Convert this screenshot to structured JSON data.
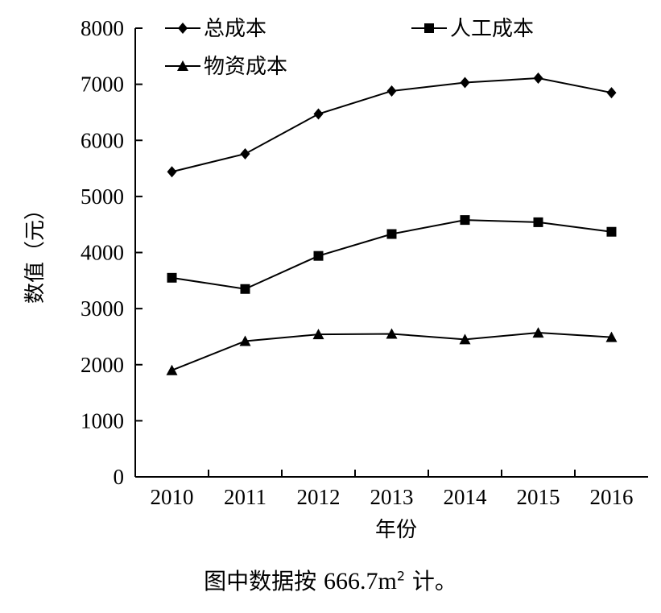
{
  "chart_data": {
    "type": "line",
    "xlabel": "年份",
    "ylabel": "数值（元）",
    "categories": [
      "2010",
      "2011",
      "2012",
      "2013",
      "2014",
      "2015",
      "2016"
    ],
    "ylim": [
      0,
      8000
    ],
    "yticks": [
      0,
      1000,
      2000,
      3000,
      4000,
      5000,
      6000,
      7000,
      8000
    ],
    "grid": false,
    "legend_position": "top",
    "series": [
      {
        "name": "总成本",
        "marker": "diamond",
        "values": [
          5440,
          5760,
          6470,
          6880,
          7030,
          7110,
          6850
        ]
      },
      {
        "name": "人工成本",
        "marker": "square",
        "values": [
          3550,
          3350,
          3940,
          4330,
          4580,
          4540,
          4370
        ]
      },
      {
        "name": "物资成本",
        "marker": "triangle",
        "values": [
          1900,
          2420,
          2540,
          2550,
          2450,
          2570,
          2490
        ]
      }
    ],
    "colors": {
      "line": "#000000"
    }
  },
  "caption": {
    "prefix": "图中数据按",
    "number": "666.7m",
    "superscript": "2",
    "suffix": "计。"
  }
}
